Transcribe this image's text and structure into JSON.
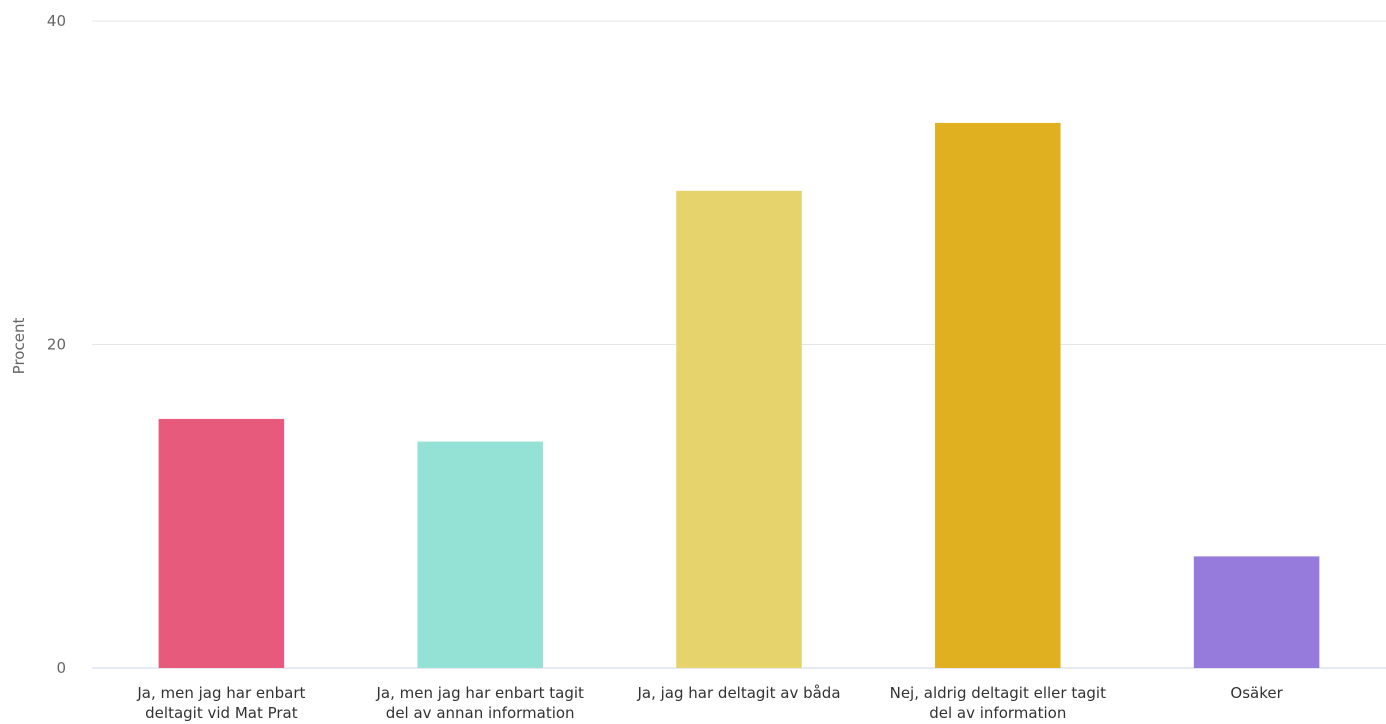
{
  "chart_data": {
    "type": "bar",
    "ylabel": "Procent",
    "ylim": [
      0,
      40
    ],
    "yticks": [
      "0",
      "20",
      "40"
    ],
    "grid": true,
    "categories": [
      [
        "Ja, men jag har enbart",
        "deltagit vid Mat Prat"
      ],
      [
        "Ja, men jag har enbart tagit",
        "del av annan information"
      ],
      [
        "Ja, jag har deltagit av båda"
      ],
      [
        "Nej, aldrig deltagit eller tagit",
        "del av information"
      ],
      [
        "Osäker"
      ]
    ],
    "values": [
      15.4,
      14.0,
      29.5,
      33.7,
      6.9
    ],
    "colors": [
      "#e75a7c",
      "#93e2d5",
      "#e6d36b",
      "#e1b021",
      "#967bdc"
    ]
  }
}
